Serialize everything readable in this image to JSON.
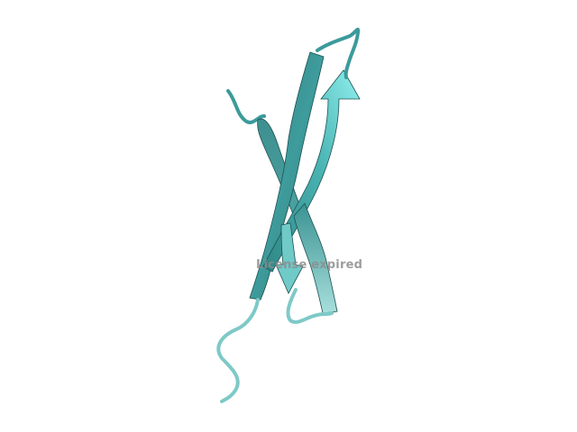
{
  "viewer": {
    "watermark_text": "License expired",
    "background_color": "#ffffff",
    "model": {
      "style": "cartoon",
      "secondary_structure": "beta-sheet",
      "colors": {
        "sheet_dark": "#2f7f80",
        "sheet_mid": "#3f9c9c",
        "sheet_light": "#7fe0df",
        "sheet_pale": "#9ed8d6",
        "coil": "#3c9a9b",
        "coil_light": "#7ec9c7",
        "outline": "#1e5152"
      }
    }
  }
}
